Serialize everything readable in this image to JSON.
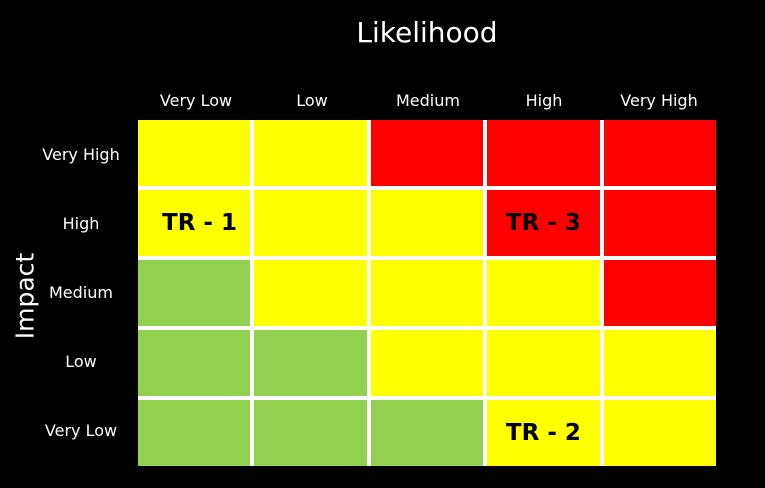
{
  "title": "Likelihood",
  "y_axis_label": "Impact",
  "columns": [
    "Very Low",
    "Low",
    "Medium",
    "High",
    "Very High"
  ],
  "rows": [
    "Very High",
    "High",
    "Medium",
    "Low",
    "Very Low"
  ],
  "colors": {
    "background": "#000000",
    "low": "#92d050",
    "medium": "#ffff00",
    "high": "#ff0000",
    "gridline": "#ffffff"
  },
  "matrix": [
    [
      "medium",
      "medium",
      "high",
      "high",
      "high"
    ],
    [
      "medium",
      "medium",
      "medium",
      "high",
      "high"
    ],
    [
      "low",
      "medium",
      "medium",
      "medium",
      "high"
    ],
    [
      "low",
      "low",
      "medium",
      "medium",
      "medium"
    ],
    [
      "low",
      "low",
      "low",
      "medium",
      "medium"
    ]
  ],
  "labels": [
    [
      "",
      "",
      "",
      "",
      ""
    ],
    [
      "TR - 1",
      "",
      "",
      "TR - 3",
      ""
    ],
    [
      "",
      "",
      "",
      "",
      ""
    ],
    [
      "",
      "",
      "",
      "",
      ""
    ],
    [
      "",
      "",
      "",
      "TR - 2",
      ""
    ]
  ]
}
